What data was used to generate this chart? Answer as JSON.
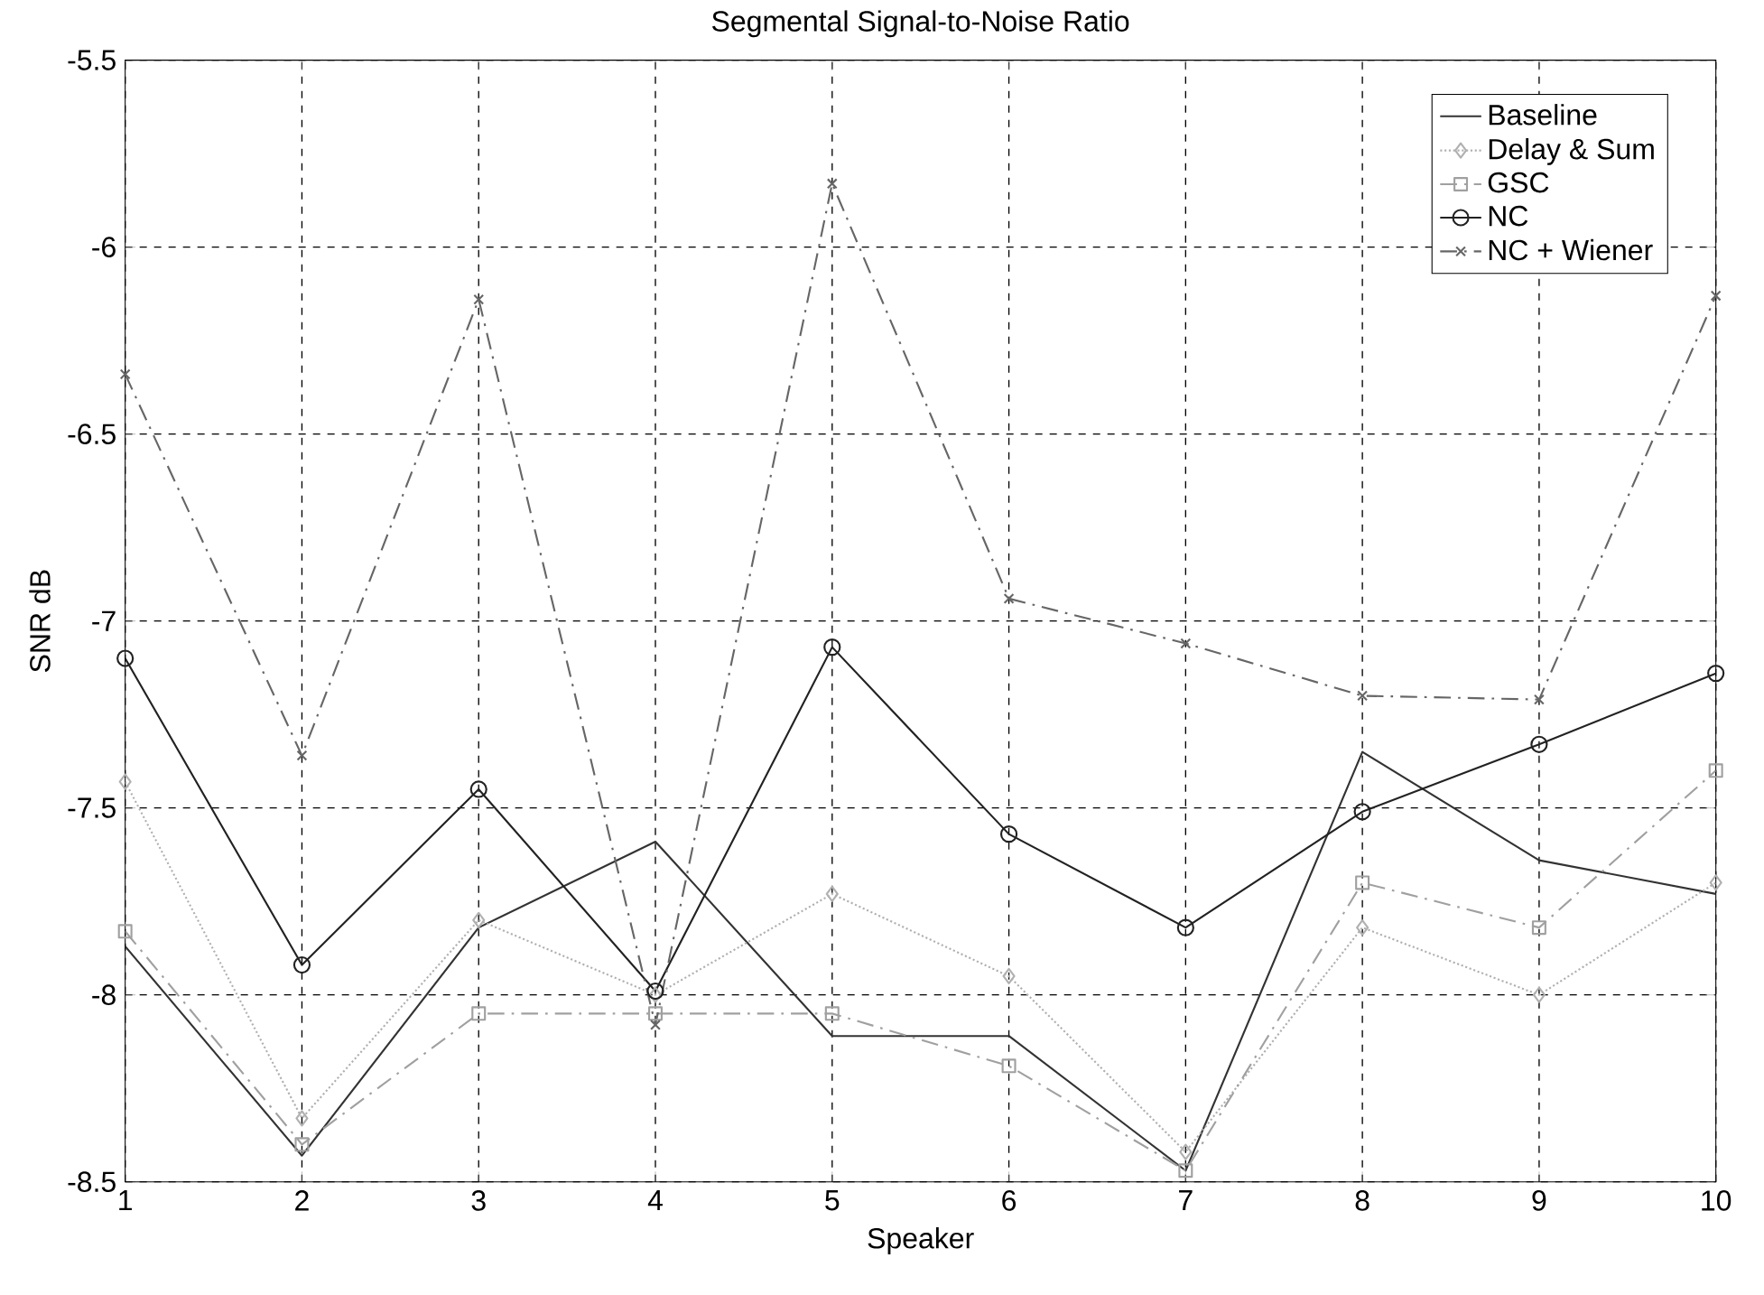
{
  "chart_data": {
    "type": "line",
    "title": "Segmental Signal-to-Noise Ratio",
    "xlabel": "Speaker",
    "ylabel": "SNR dB",
    "x": [
      1,
      2,
      3,
      4,
      5,
      6,
      7,
      8,
      9,
      10
    ],
    "series": [
      {
        "name": "Baseline",
        "color": "#333333",
        "marker": "none",
        "line_style": "solid",
        "values": [
          -7.87,
          -8.43,
          -7.82,
          -7.59,
          -8.11,
          -8.11,
          -8.47,
          -7.35,
          -7.64,
          -7.73
        ]
      },
      {
        "name": "Delay & Sum",
        "color": "#b0b0b0",
        "marker": "diamond",
        "line_style": "dotted",
        "values": [
          -7.43,
          -8.33,
          -7.8,
          -8.0,
          -7.73,
          -7.95,
          -8.42,
          -7.82,
          -8.0,
          -7.7
        ]
      },
      {
        "name": "GSC",
        "color": "#a0a0a0",
        "marker": "square",
        "line_style": "dashed",
        "values": [
          -7.83,
          -8.4,
          -8.05,
          -8.05,
          -8.05,
          -8.19,
          -8.47,
          -7.7,
          -7.82,
          -7.4
        ]
      },
      {
        "name": "NC",
        "color": "#222222",
        "marker": "circle",
        "line_style": "solid",
        "values": [
          -7.1,
          -7.92,
          -7.45,
          -7.99,
          -7.07,
          -7.57,
          -7.82,
          -7.51,
          -7.33,
          -7.14
        ]
      },
      {
        "name": "NC + Wiener",
        "color": "#666666",
        "marker": "cross",
        "line_style": "dashed",
        "values": [
          -6.34,
          -7.36,
          -6.14,
          -8.08,
          -5.83,
          -6.94,
          -7.06,
          -7.2,
          -7.21,
          -6.13
        ]
      }
    ],
    "xlim": [
      1,
      10
    ],
    "xticks": [
      1,
      2,
      3,
      4,
      5,
      6,
      7,
      8,
      9,
      10
    ],
    "ylim": [
      -8.5,
      -5.5
    ],
    "yticks": [
      -8.5,
      -8,
      -7.5,
      -7,
      -6.5,
      -6,
      -5.5
    ],
    "grid": true,
    "legend": "top right"
  }
}
